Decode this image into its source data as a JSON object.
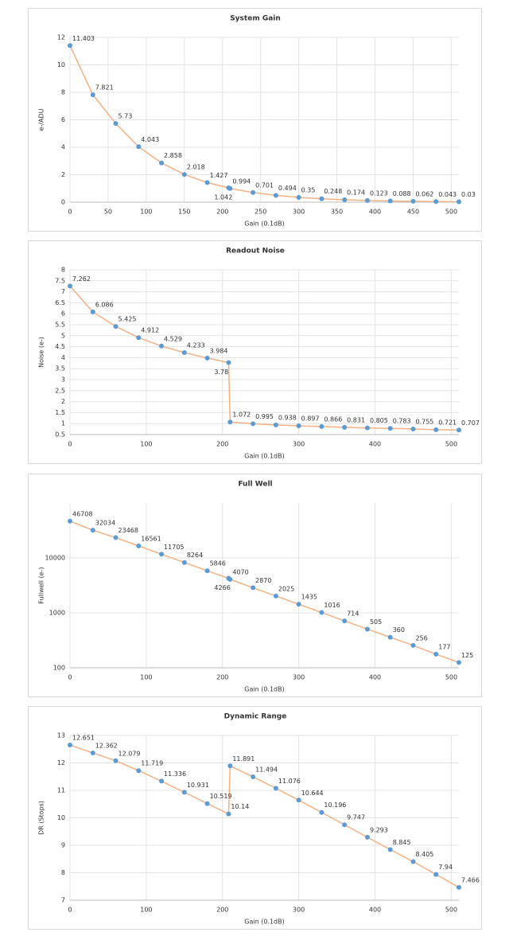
{
  "chart_data": [
    {
      "type": "line",
      "title": "System Gain",
      "x_label": "Gain (0.1dB)",
      "y_label": "e-/ADU",
      "x": [
        0,
        30,
        60,
        90,
        120,
        150,
        180,
        208,
        210,
        240,
        270,
        300,
        330,
        360,
        390,
        420,
        450,
        480,
        510
      ],
      "values": [
        11.403,
        7.821,
        5.73,
        4.043,
        2.858,
        2.018,
        1.427,
        1.042,
        0.994,
        0.701,
        0.494,
        0.35,
        0.248,
        0.174,
        0.123,
        0.088,
        0.062,
        0.043,
        0.03
      ],
      "line_color": "#f4b183",
      "marker_color": "#5b9bd5",
      "xlim": [
        0,
        510
      ],
      "xticks": [
        0,
        50,
        100,
        150,
        200,
        250,
        300,
        350,
        400,
        450,
        500
      ],
      "ylim": [
        0,
        12
      ],
      "yticks": [
        0,
        2,
        4,
        6,
        8,
        10,
        12
      ],
      "log_y": false,
      "grid": true
    },
    {
      "type": "line",
      "title": "Readout Noise",
      "x_label": "Gain (0.1dB)",
      "y_label": "Noise (e-)",
      "x": [
        0,
        30,
        60,
        90,
        120,
        150,
        180,
        208,
        210,
        240,
        270,
        300,
        330,
        360,
        390,
        420,
        450,
        480,
        510
      ],
      "values": [
        7.262,
        6.086,
        5.425,
        4.912,
        4.529,
        4.233,
        3.984,
        3.78,
        1.072,
        0.995,
        0.938,
        0.897,
        0.866,
        0.831,
        0.805,
        0.783,
        0.755,
        0.721,
        0.707
      ],
      "line_color": "#f4b183",
      "marker_color": "#5b9bd5",
      "xlim": [
        0,
        510
      ],
      "xticks": [
        0,
        100,
        200,
        300,
        400,
        500
      ],
      "ylim": [
        0.5,
        8
      ],
      "yticks": [
        0.5,
        1,
        1.5,
        2,
        2.5,
        3,
        3.5,
        4,
        4.5,
        5,
        5.5,
        6,
        6.5,
        7,
        7.5,
        8
      ],
      "log_y": false,
      "grid": true
    },
    {
      "type": "line",
      "title": "Full Well",
      "x_label": "Gain (0.1dB)",
      "y_label": "Fullwell (e-)",
      "x": [
        0,
        30,
        60,
        90,
        120,
        150,
        180,
        208,
        210,
        240,
        270,
        300,
        330,
        360,
        390,
        420,
        450,
        480,
        510
      ],
      "values": [
        46708,
        32034,
        23468,
        16561,
        11705,
        8264,
        5846,
        4266,
        4070,
        2870,
        2025,
        1435,
        1016,
        714,
        505,
        360,
        256,
        177,
        125
      ],
      "line_color": "#f4b183",
      "marker_color": "#5b9bd5",
      "xlim": [
        0,
        510
      ],
      "xticks": [
        0,
        100,
        200,
        300,
        400,
        500
      ],
      "ylim": [
        100,
        100000
      ],
      "yticks": [
        100,
        1000,
        10000
      ],
      "log_y": true,
      "grid": true
    },
    {
      "type": "line",
      "title": "Dynamic Range",
      "x_label": "Gain (0.1dB)",
      "y_label": "DR (Stops)",
      "x": [
        0,
        30,
        60,
        90,
        120,
        150,
        180,
        208,
        210,
        240,
        270,
        300,
        330,
        360,
        390,
        420,
        450,
        480,
        510
      ],
      "values": [
        12.651,
        12.362,
        12.079,
        11.719,
        11.336,
        10.931,
        10.519,
        10.14,
        11.891,
        11.494,
        11.076,
        10.644,
        10.196,
        9.747,
        9.293,
        8.845,
        8.405,
        7.94,
        7.466
      ],
      "line_color": "#f4b183",
      "marker_color": "#5b9bd5",
      "xlim": [
        0,
        510
      ],
      "xticks": [
        0,
        100,
        200,
        300,
        400,
        500
      ],
      "ylim": [
        7,
        13
      ],
      "yticks": [
        7,
        8,
        9,
        10,
        11,
        12,
        13
      ],
      "log_y": false,
      "grid": true
    }
  ]
}
